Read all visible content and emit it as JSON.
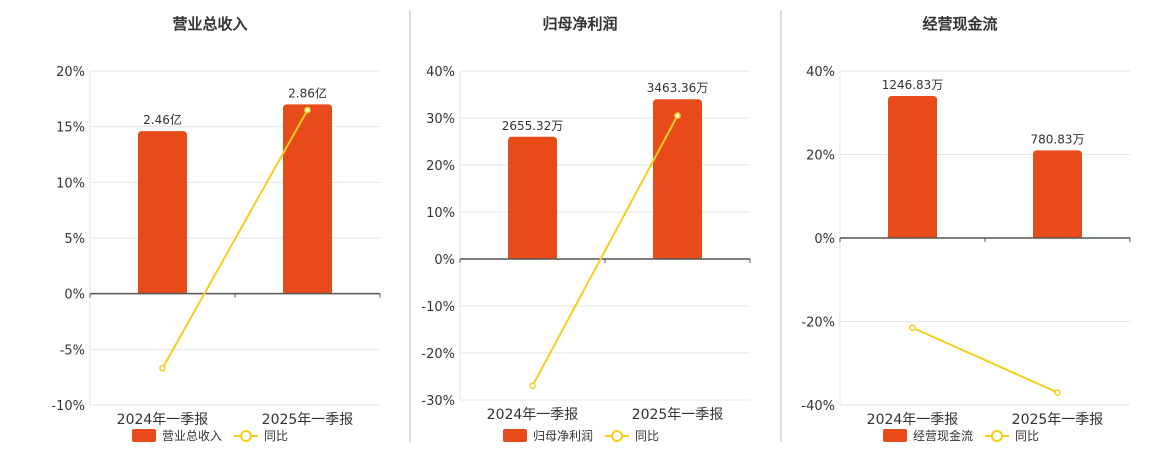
{
  "colors": {
    "bar": "#E84B1A",
    "line": "#F2CF1E",
    "grid": "#E6E6E6",
    "axis": "#555555",
    "divider": "#BBBBBB",
    "text": "#333333"
  },
  "chart_data": [
    {
      "type": "bar",
      "title": "营业总收入",
      "categories": [
        "2024年一季报",
        "2025年一季报"
      ],
      "series": [
        {
          "name": "营业总收入",
          "type": "bar",
          "values": [
            14.6,
            17.0
          ],
          "labels": [
            "2.46亿",
            "2.86亿"
          ]
        },
        {
          "name": "同比",
          "type": "line",
          "values": [
            -6.7,
            16.5
          ]
        }
      ],
      "ylim": [
        -10,
        20
      ],
      "yticks": [
        -10,
        -5,
        0,
        5,
        10,
        15,
        20
      ],
      "ytick_labels": [
        "-10%",
        "-5%",
        "0%",
        "5%",
        "10%",
        "15%",
        "20%"
      ],
      "grid": true,
      "legend": "bottom"
    },
    {
      "type": "bar",
      "title": "归母净利润",
      "categories": [
        "2024年一季报",
        "2025年一季报"
      ],
      "series": [
        {
          "name": "归母净利润",
          "type": "bar",
          "values": [
            26.0,
            34.0
          ],
          "labels": [
            "2655.32万",
            "3463.36万"
          ]
        },
        {
          "name": "同比",
          "type": "line",
          "values": [
            -27.0,
            30.5
          ]
        }
      ],
      "ylim": [
        -30,
        40
      ],
      "yticks": [
        -30,
        -20,
        -10,
        0,
        10,
        20,
        30,
        40
      ],
      "ytick_labels": [
        "-30%",
        "-20%",
        "-10%",
        "0%",
        "10%",
        "20%",
        "30%",
        "40%"
      ],
      "grid": true,
      "legend": "bottom"
    },
    {
      "type": "bar",
      "title": "经营现金流",
      "categories": [
        "2024年一季报",
        "2025年一季报"
      ],
      "series": [
        {
          "name": "经营现金流",
          "type": "bar",
          "values": [
            34.0,
            21.0
          ],
          "labels": [
            "1246.83万",
            "780.83万"
          ]
        },
        {
          "name": "同比",
          "type": "line",
          "values": [
            -21.5,
            -37.0
          ]
        }
      ],
      "ylim": [
        -40,
        40
      ],
      "yticks": [
        -40,
        -20,
        0,
        20,
        40
      ],
      "ytick_labels": [
        "-40%",
        "-20%",
        "0%",
        "20%",
        "40%"
      ],
      "grid": true,
      "legend": "bottom"
    }
  ]
}
